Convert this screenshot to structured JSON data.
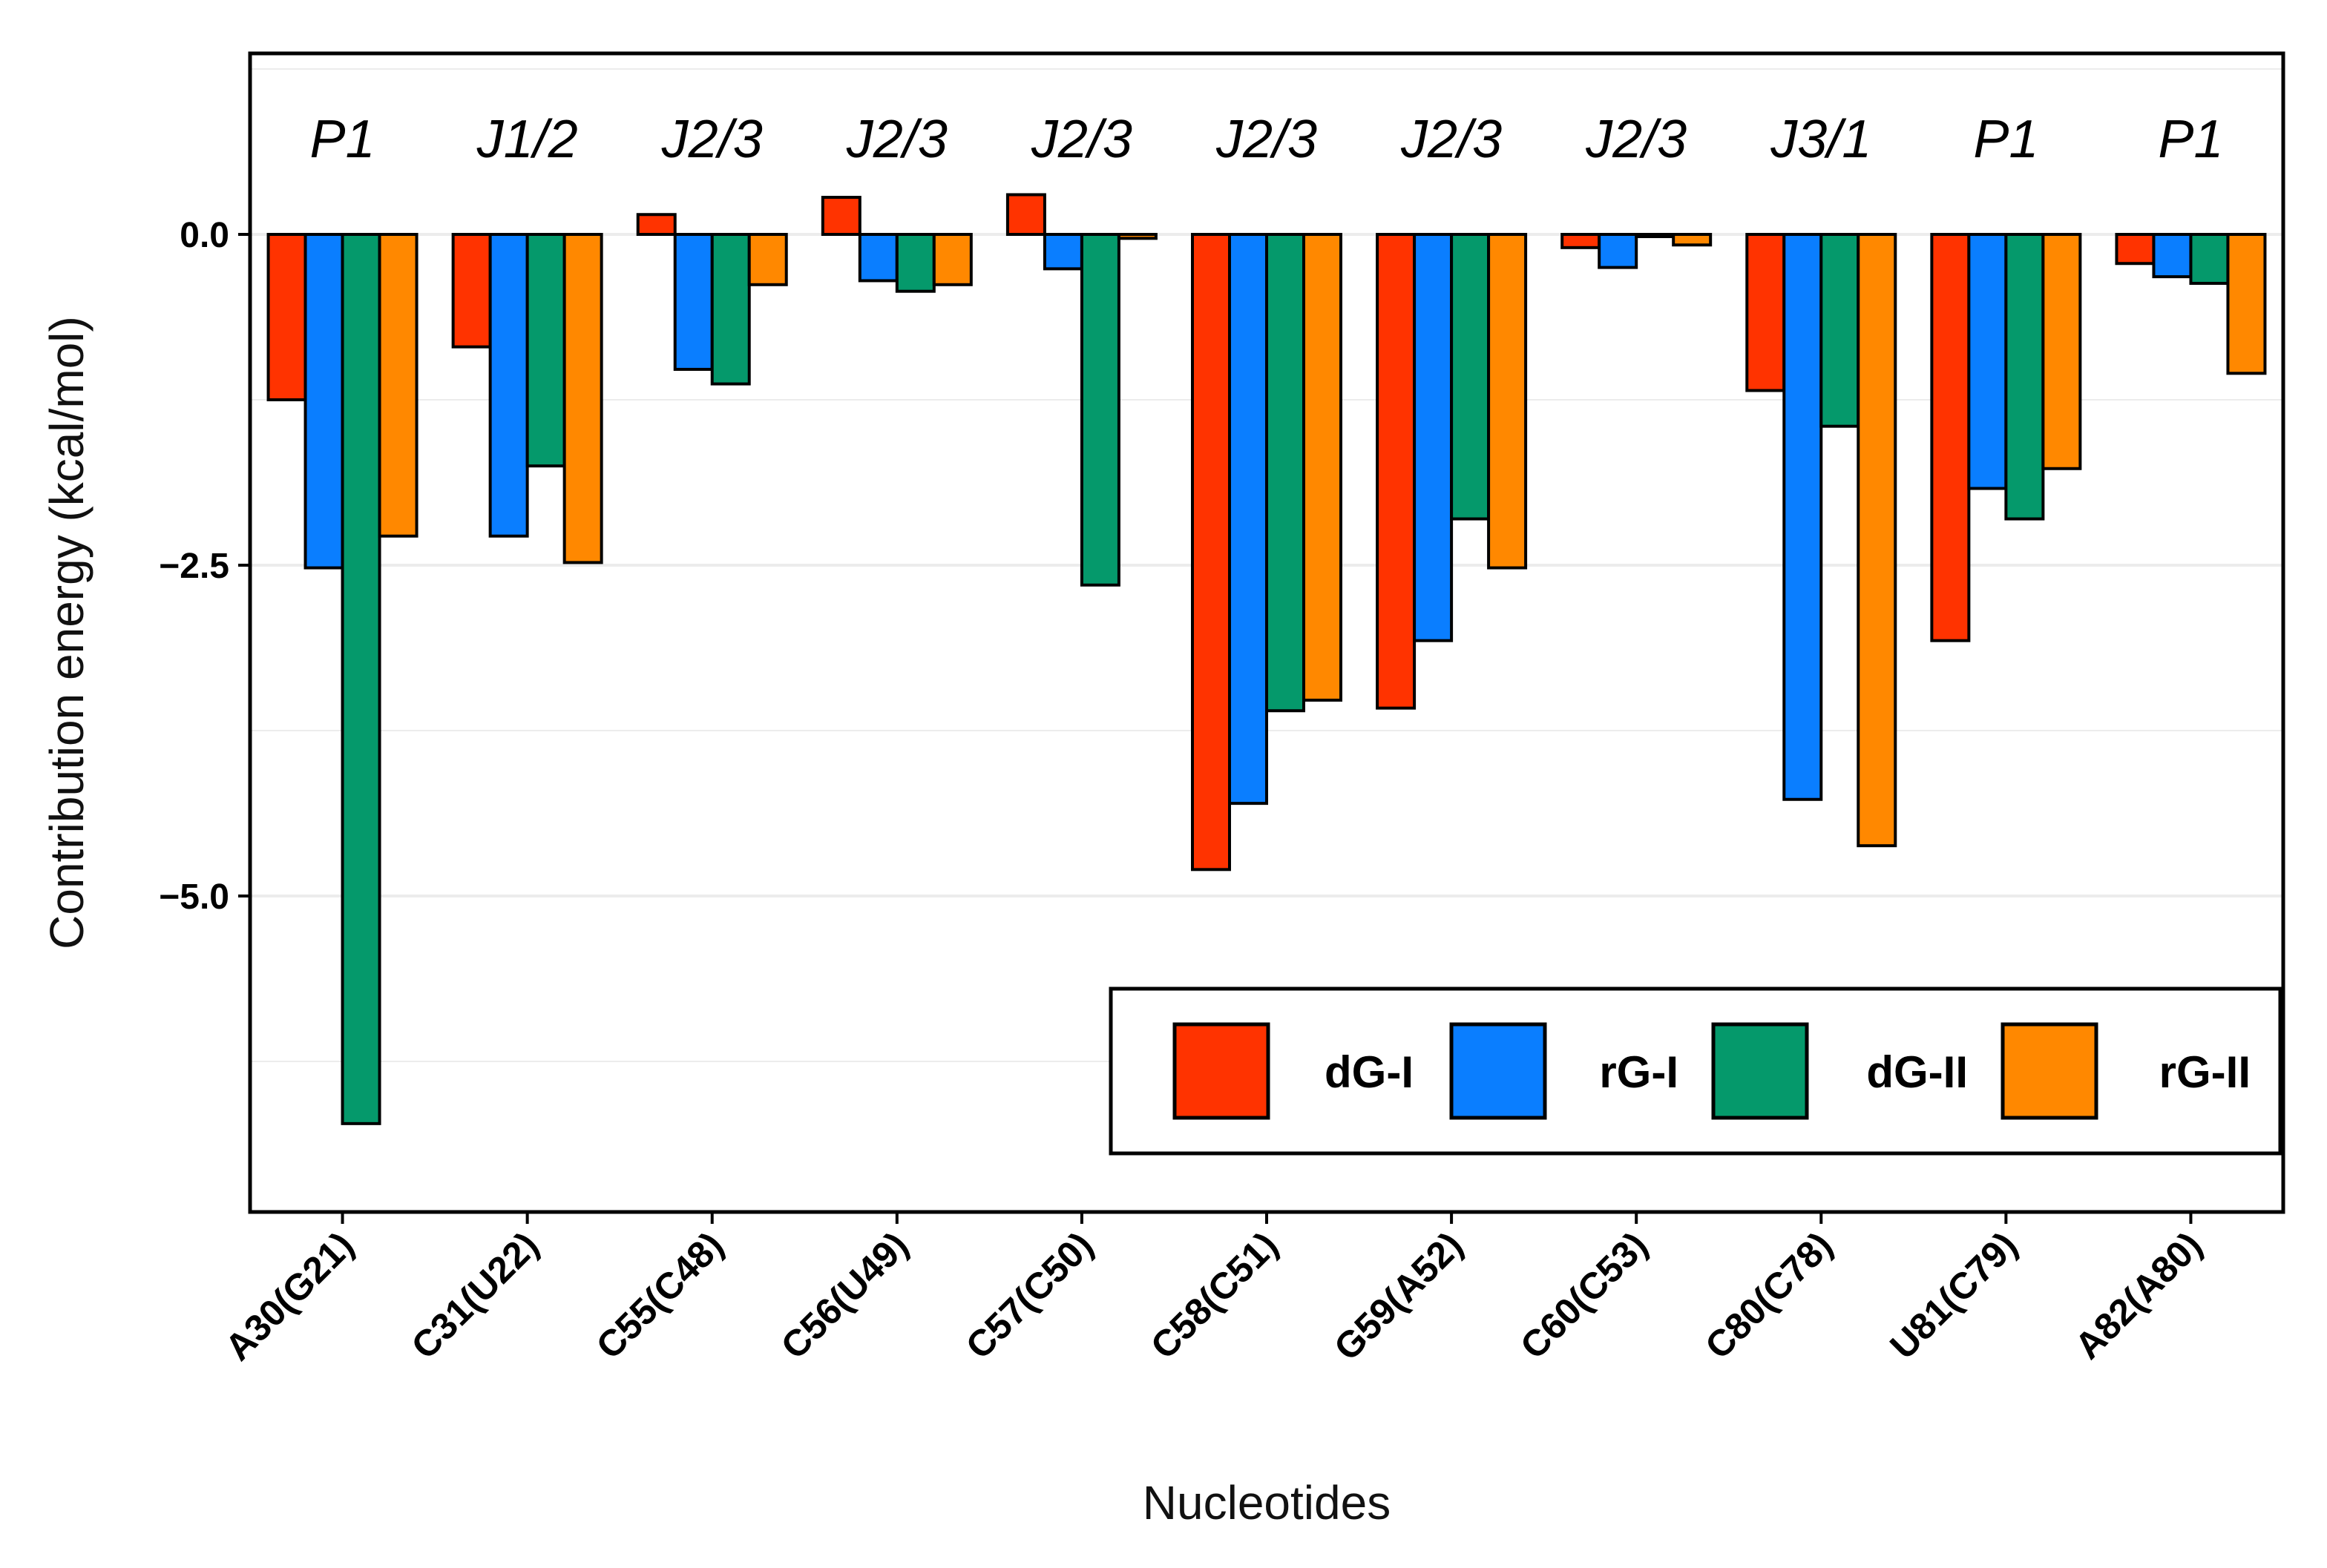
{
  "chart_data": {
    "type": "bar",
    "title": "",
    "xlabel": "Nucleotides",
    "ylabel": "Contribution energy (kcal/mol)",
    "ylim": [
      -7.4,
      1.35
    ],
    "yticks": [
      0.0,
      -2.5,
      -5.0
    ],
    "ytick_labels": [
      "0.0",
      "−2.5",
      "−5.0"
    ],
    "grid": true,
    "legend_position": "bottom-right",
    "categories": [
      "A30(G21)",
      "C31(U22)",
      "C55(C48)",
      "C56(U49)",
      "C57(C50)",
      "C58(C51)",
      "G59(A52)",
      "C60(C53)",
      "C80(C78)",
      "U81(C79)",
      "A82(A80)"
    ],
    "region_labels": [
      "P1",
      "J1/2",
      "J2/3",
      "J2/3",
      "J2/3",
      "J2/3",
      "J2/3",
      "J2/3",
      "J3/1",
      "P1",
      "P1"
    ],
    "series": [
      {
        "name": "dG-I",
        "color": "#FF3300",
        "values": [
          -1.25,
          -0.85,
          0.15,
          0.28,
          0.3,
          -4.8,
          -3.58,
          -0.1,
          -1.18,
          -3.07,
          -0.22
        ]
      },
      {
        "name": "rG-I",
        "color": "#0A7EFF",
        "values": [
          -2.52,
          -2.28,
          -1.02,
          -0.35,
          -0.26,
          -4.3,
          -3.07,
          -0.25,
          -4.27,
          -1.92,
          -0.32
        ]
      },
      {
        "name": "dG-II",
        "color": "#05996B",
        "values": [
          -6.72,
          -1.75,
          -1.13,
          -0.43,
          -2.65,
          -3.6,
          -2.15,
          0.0,
          -1.45,
          -2.15,
          -0.37
        ]
      },
      {
        "name": "rG-II",
        "color": "#FF8800",
        "values": [
          -2.28,
          -2.48,
          -0.38,
          -0.38,
          -0.03,
          -3.52,
          -2.52,
          -0.08,
          -4.62,
          -1.77,
          -1.05
        ]
      }
    ]
  }
}
